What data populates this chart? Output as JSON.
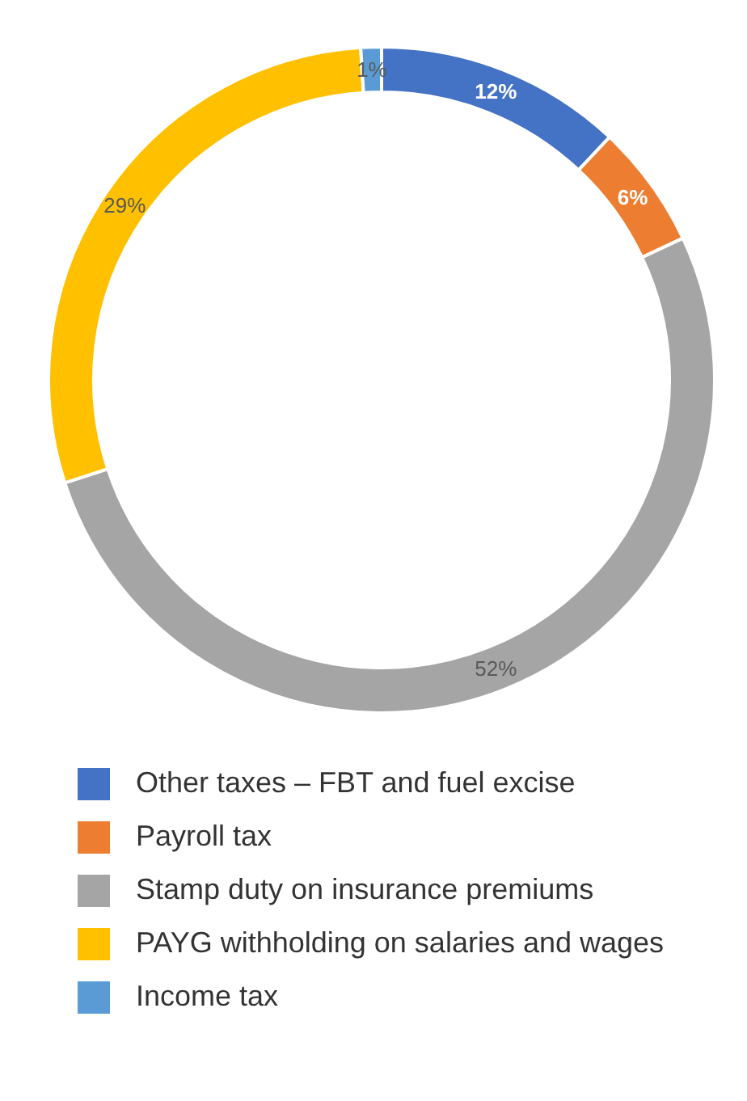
{
  "chart_data": {
    "type": "donut",
    "categories": [
      "Other taxes – FBT and fuel excise",
      "Payroll tax",
      "Stamp duty on insurance premiums",
      "PAYG withholding on salaries and wages",
      "Income tax"
    ],
    "values": [
      12,
      6,
      52,
      29,
      1
    ],
    "colors": [
      "#4472c4",
      "#ed7d31",
      "#a5a5a5",
      "#ffc000",
      "#5b9bd5"
    ],
    "value_labels": [
      "12%",
      "6%",
      "52%",
      "29%",
      "1%"
    ],
    "legend": "bottom"
  }
}
